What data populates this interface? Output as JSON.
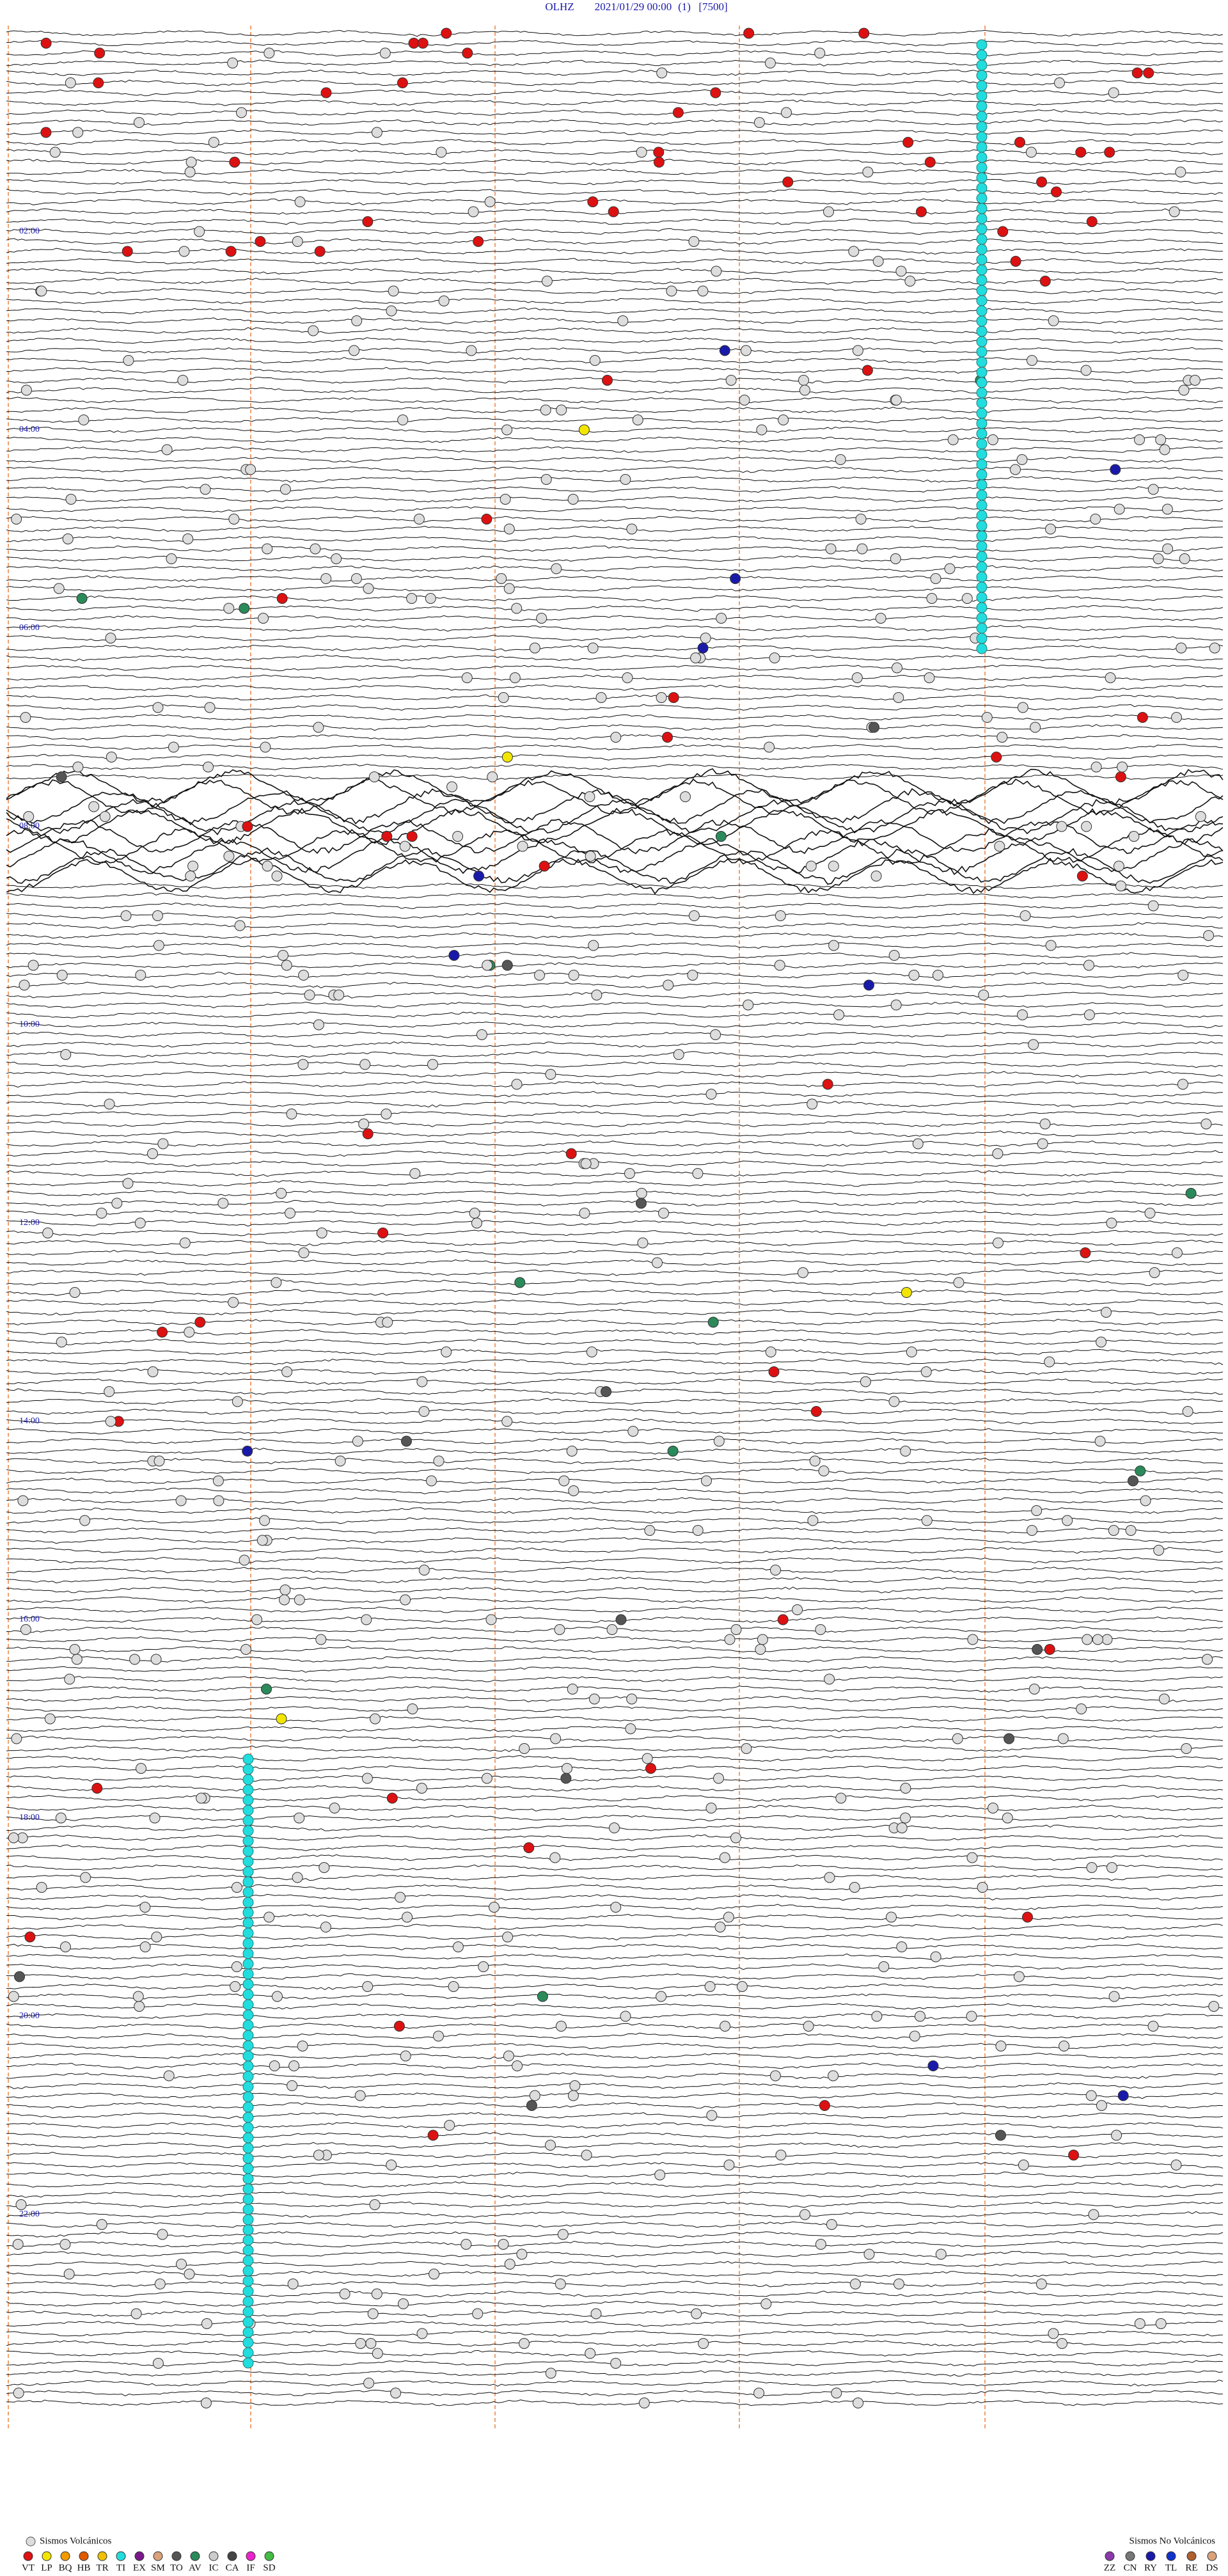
{
  "header": {
    "station": "OLHZ",
    "datetime": "2021/01/29 00:00",
    "channel": "(1)",
    "scale": "[7500]"
  },
  "time_labels": [
    "02:00",
    "04:00",
    "06:00",
    "08:00",
    "10:00",
    "12:00",
    "14:00",
    "16:00",
    "18:00",
    "20:00",
    "22:00"
  ],
  "legend": {
    "volcanic_title": "Sismos Volcánicos",
    "volcanic": [
      {
        "code": "VT",
        "color": "#dd1111"
      },
      {
        "code": "LP",
        "color": "#f2e600"
      },
      {
        "code": "BQ",
        "color": "#f29a00"
      },
      {
        "code": "HB",
        "color": "#e05a00"
      },
      {
        "code": "TR",
        "color": "#f0c000"
      },
      {
        "code": "TI",
        "color": "#22dddd"
      },
      {
        "code": "EX",
        "color": "#7a1a8a"
      },
      {
        "code": "SM",
        "color": "#d9a27a"
      },
      {
        "code": "TO",
        "color": "#555555"
      },
      {
        "code": "AV",
        "color": "#2a8a5a"
      },
      {
        "code": "IC",
        "color": "#cccccc"
      },
      {
        "code": "CA",
        "color": "#444444"
      },
      {
        "code": "IF",
        "color": "#ee22cc"
      },
      {
        "code": "SD",
        "color": "#44bb44"
      }
    ],
    "non_volcanic_title": "Sismos No Volcánicos",
    "non_volcanic": [
      {
        "code": "ZZ",
        "color": "#8a3aaa"
      },
      {
        "code": "CN",
        "color": "#777777"
      },
      {
        "code": "RY",
        "color": "#1a1aaa"
      },
      {
        "code": "TL",
        "color": "#1133cc"
      },
      {
        "code": "RE",
        "color": "#b06030"
      },
      {
        "code": "DS",
        "color": "#d9a27a"
      }
    ]
  }
}
